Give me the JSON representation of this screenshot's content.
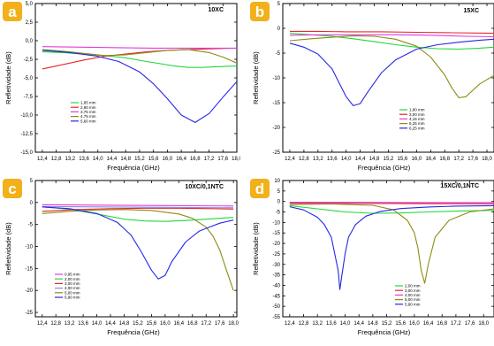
{
  "colors": {
    "badge": "#f2b11a",
    "badge_text": "#ffffff",
    "axis": "#000000",
    "series": {
      "green": "#22d83a",
      "red": "#e8262a",
      "magenta": "#e23be0",
      "olive": "#8c8c16",
      "blue": "#2727e6"
    }
  },
  "chart_data": [
    {
      "type": "line",
      "panel_label": "a",
      "material": "10XC",
      "xlabel": "Frequência (GHz)",
      "ylabel": "Refletividade (dB)",
      "xlim": [
        12.2,
        18.0
      ],
      "ylim": [
        -15.0,
        5.0
      ],
      "x_ticks": [
        "12,4",
        "12,8",
        "13,2",
        "13,6",
        "14,0",
        "14,4",
        "14,8",
        "15,2",
        "15,6",
        "16,0",
        "16,4",
        "16,8",
        "17,2",
        "17,6",
        "18,0"
      ],
      "y_ticks": [
        "5,0",
        "2,5",
        "0,0",
        "-2,5",
        "-5,0",
        "-7,5",
        "-10,0",
        "-12,5",
        "-15,0"
      ],
      "legend_position": "center-left",
      "series": [
        {
          "name": "1,85 mm",
          "color": "#22d83a",
          "x": [
            12.4,
            13.0,
            13.6,
            14.2,
            14.8,
            15.4,
            15.8,
            16.2,
            16.6,
            17.0,
            17.4,
            18.0
          ],
          "y": [
            -1.5,
            -1.6,
            -1.8,
            -2.0,
            -2.3,
            -2.8,
            -3.1,
            -3.4,
            -3.6,
            -3.6,
            -3.5,
            -3.4
          ]
        },
        {
          "name": "2,80 mm",
          "color": "#e8262a",
          "x": [
            12.4,
            13.0,
            13.6,
            14.2,
            14.8,
            15.4,
            16.0,
            16.6,
            17.2,
            18.0
          ],
          "y": [
            -3.8,
            -3.2,
            -2.6,
            -2.1,
            -1.8,
            -1.5,
            -1.3,
            -1.2,
            -1.1,
            -1.0
          ]
        },
        {
          "name": "3,75 mm",
          "color": "#e23be0",
          "x": [
            12.4,
            14.0,
            15.6,
            17.0,
            18.0
          ],
          "y": [
            -0.8,
            -0.9,
            -1.0,
            -1.0,
            -1.0
          ]
        },
        {
          "name": "4,75 mm",
          "color": "#8c8c16",
          "x": [
            12.4,
            13.0,
            13.6,
            14.2,
            14.8,
            15.4,
            16.0,
            16.6,
            17.2,
            17.6,
            18.0
          ],
          "y": [
            -1.2,
            -1.4,
            -1.7,
            -2.0,
            -1.9,
            -1.6,
            -1.3,
            -1.2,
            -1.6,
            -2.2,
            -3.0
          ]
        },
        {
          "name": "5,60 mm",
          "color": "#2727e6",
          "x": [
            12.4,
            13.2,
            14.0,
            14.6,
            15.2,
            15.6,
            16.0,
            16.4,
            16.8,
            17.2,
            17.6,
            18.0
          ],
          "y": [
            -1.3,
            -1.6,
            -2.1,
            -2.8,
            -4.2,
            -5.8,
            -7.8,
            -10.0,
            -11.0,
            -9.8,
            -7.6,
            -5.5
          ]
        }
      ]
    },
    {
      "type": "line",
      "panel_label": "b",
      "material": "15XC",
      "xlabel": "Frequência (GHz)",
      "ylabel": "Refletividade (dB)",
      "xlim": [
        12.2,
        18.2
      ],
      "ylim": [
        -25,
        5
      ],
      "x_ticks": [
        "12,4",
        "12,8",
        "13,2",
        "13,6",
        "14,0",
        "14,4",
        "14,8",
        "15,2",
        "15,6",
        "16,0",
        "16,4",
        "16,8",
        "17,2",
        "17,6",
        "18,0"
      ],
      "y_ticks": [
        "5",
        "0",
        "-5",
        "-10",
        "-15",
        "-20",
        "-25"
      ],
      "legend_position": "center-right",
      "series": [
        {
          "name": "1,90 mm",
          "color": "#22d83a",
          "x": [
            12.4,
            13.0,
            13.6,
            14.2,
            14.8,
            15.4,
            16.0,
            16.6,
            17.2,
            17.8,
            18.2
          ],
          "y": [
            -1.0,
            -1.3,
            -1.6,
            -2.1,
            -2.7,
            -3.3,
            -3.8,
            -4.1,
            -4.2,
            -4.0,
            -3.8
          ]
        },
        {
          "name": "3,00 mm",
          "color": "#e8262a",
          "x": [
            12.4,
            13.2,
            14.0,
            15.0,
            16.0,
            17.0,
            18.2
          ],
          "y": [
            -0.6,
            -0.6,
            -0.7,
            -0.7,
            -0.8,
            -0.9,
            -1.0
          ]
        },
        {
          "name": "4,15 mm",
          "color": "#e23be0",
          "x": [
            12.4,
            13.4,
            14.4,
            15.4,
            16.4,
            17.4,
            18.2
          ],
          "y": [
            -1.4,
            -1.3,
            -1.3,
            -1.3,
            -1.4,
            -1.6,
            -1.7
          ]
        },
        {
          "name": "5,25 mm",
          "color": "#8c8c16",
          "x": [
            12.4,
            13.0,
            13.6,
            14.2,
            14.8,
            15.4,
            16.0,
            16.4,
            16.8,
            17.0,
            17.2,
            17.4,
            17.6,
            17.8,
            18.2
          ],
          "y": [
            -2.5,
            -2.1,
            -1.8,
            -1.5,
            -1.6,
            -2.2,
            -3.6,
            -5.8,
            -9.4,
            -12.0,
            -14.0,
            -13.8,
            -12.5,
            -11.2,
            -9.5
          ]
        },
        {
          "name": "6,25 mm",
          "color": "#2727e6",
          "x": [
            12.4,
            12.8,
            13.2,
            13.6,
            13.8,
            14.0,
            14.2,
            14.4,
            14.6,
            15.0,
            15.4,
            16.0,
            16.6,
            17.2,
            17.8,
            18.2
          ],
          "y": [
            -3.0,
            -3.8,
            -5.2,
            -8.2,
            -11.0,
            -13.8,
            -15.6,
            -15.2,
            -13.0,
            -9.0,
            -6.4,
            -4.2,
            -3.3,
            -2.8,
            -2.4,
            -2.2
          ]
        }
      ]
    },
    {
      "type": "line",
      "panel_label": "c",
      "material": "10XC/0,1NTC",
      "xlabel": "Frequência (GHz)",
      "ylabel": "Refletividade (dB)",
      "xlim": [
        12.2,
        18.1
      ],
      "ylim": [
        -26,
        5
      ],
      "x_ticks": [
        "12,4",
        "12,8",
        "13,2",
        "13,6",
        "14,0",
        "14,4",
        "14,8",
        "15,2",
        "15,6",
        "16,0",
        "16,4",
        "16,8",
        "17,2",
        "17,6",
        "18,0"
      ],
      "y_ticks": [
        "5",
        "0",
        "-5",
        "-10",
        "-15",
        "-20",
        "-25"
      ],
      "legend_position": "bottom-left",
      "series": [
        {
          "name": "0,95 mm",
          "color": "#e23be0",
          "x": [
            12.4,
            14.0,
            16.0,
            18.0
          ],
          "y": [
            -0.5,
            -0.6,
            -0.7,
            -0.8
          ]
        },
        {
          "name": "2,00 mm",
          "color": "#22d83a",
          "x": [
            12.4,
            13.2,
            14.0,
            14.8,
            15.4,
            16.0,
            16.6,
            17.2,
            17.6,
            18.0
          ],
          "y": [
            -1.0,
            -1.5,
            -2.6,
            -3.8,
            -4.2,
            -4.3,
            -4.1,
            -3.8,
            -3.6,
            -3.4
          ]
        },
        {
          "name": "3,00 mm",
          "color": "#e8262a",
          "x": [
            12.4,
            13.4,
            14.4,
            15.4,
            16.4,
            17.4,
            18.0
          ],
          "y": [
            -2.0,
            -1.6,
            -1.4,
            -1.3,
            -1.3,
            -1.4,
            -1.5
          ]
        },
        {
          "name": "4,00 mm",
          "color": "#8c8cdc",
          "x": [
            12.4,
            14.0,
            16.0,
            18.0
          ],
          "y": [
            -0.9,
            -1.0,
            -1.1,
            -1.2
          ]
        },
        {
          "name": "5,00 mm",
          "color": "#8c8c16",
          "x": [
            12.4,
            13.2,
            14.0,
            14.8,
            15.6,
            16.4,
            16.8,
            17.2,
            17.4,
            17.6,
            17.8,
            18.0
          ],
          "y": [
            -2.5,
            -2.0,
            -1.7,
            -1.6,
            -1.8,
            -2.6,
            -3.6,
            -5.6,
            -7.6,
            -10.8,
            -15.5,
            -20.0
          ]
        },
        {
          "name": "5,90 mm",
          "color": "#2727e6",
          "x": [
            12.4,
            13.2,
            14.0,
            14.6,
            15.0,
            15.3,
            15.6,
            15.8,
            16.0,
            16.2,
            16.6,
            17.0,
            17.6,
            18.0
          ],
          "y": [
            -1.0,
            -1.4,
            -2.5,
            -4.5,
            -7.4,
            -11.2,
            -15.4,
            -17.4,
            -16.6,
            -13.4,
            -9.0,
            -6.5,
            -4.7,
            -4.0
          ]
        }
      ]
    },
    {
      "type": "line",
      "panel_label": "d",
      "material": "15XC/0,1NTC",
      "xlabel": "Frequência (GHz)",
      "ylabel": "Refletividade (dB)",
      "xlim": [
        12.2,
        18.3
      ],
      "ylim": [
        -55,
        10
      ],
      "x_ticks": [
        "12,4",
        "12,8",
        "13,2",
        "13,6",
        "14,0",
        "14,4",
        "14,8",
        "15,2",
        "15,6",
        "16,0",
        "16,4",
        "16,8",
        "17,2",
        "17,6",
        "18,0"
      ],
      "y_ticks": [
        "10",
        "5",
        "0",
        "-5",
        "-10",
        "-15",
        "-20",
        "-25",
        "-30",
        "-35",
        "-40",
        "-45",
        "-50",
        "-55"
      ],
      "legend_position": "bottom-right",
      "series": [
        {
          "name": "2,00 mm",
          "color": "#22d83a",
          "x": [
            12.4,
            13.2,
            14.0,
            14.8,
            15.6,
            16.4,
            17.2,
            18.0,
            18.3
          ],
          "y": [
            -2.0,
            -3.5,
            -5.0,
            -5.6,
            -5.5,
            -5.0,
            -4.6,
            -4.3,
            -4.2
          ]
        },
        {
          "name": "3,00 mm",
          "color": "#e8262a",
          "x": [
            12.4,
            14.0,
            16.0,
            18.3
          ],
          "y": [
            -0.8,
            -0.9,
            -1.0,
            -1.1
          ]
        },
        {
          "name": "4,00 mm",
          "color": "#e23be0",
          "x": [
            12.4,
            14.0,
            16.0,
            18.3
          ],
          "y": [
            -0.4,
            -0.4,
            -0.5,
            -0.5
          ]
        },
        {
          "name": "5,00 mm",
          "color": "#8c8c16",
          "x": [
            12.4,
            13.6,
            14.8,
            15.4,
            15.8,
            16.0,
            16.1,
            16.2,
            16.3,
            16.4,
            16.6,
            17.0,
            17.6,
            18.3
          ],
          "y": [
            -1.5,
            -1.2,
            -1.8,
            -4.0,
            -9.0,
            -15.0,
            -22.0,
            -33.0,
            -39.0,
            -30.0,
            -17.0,
            -9.0,
            -5.0,
            -3.5
          ]
        },
        {
          "name": "5,90 mm",
          "color": "#2727e6",
          "x": [
            12.4,
            12.8,
            13.2,
            13.4,
            13.6,
            13.7,
            13.8,
            13.85,
            13.9,
            14.0,
            14.1,
            14.3,
            14.6,
            15.0,
            15.6,
            16.4,
            17.2,
            18.3
          ],
          "y": [
            -2.5,
            -4.0,
            -7.5,
            -11.0,
            -17.0,
            -25.0,
            -33.0,
            -42.0,
            -36.0,
            -25.0,
            -17.0,
            -11.0,
            -7.0,
            -4.8,
            -3.4,
            -2.6,
            -2.2,
            -2.0
          ]
        }
      ]
    }
  ]
}
